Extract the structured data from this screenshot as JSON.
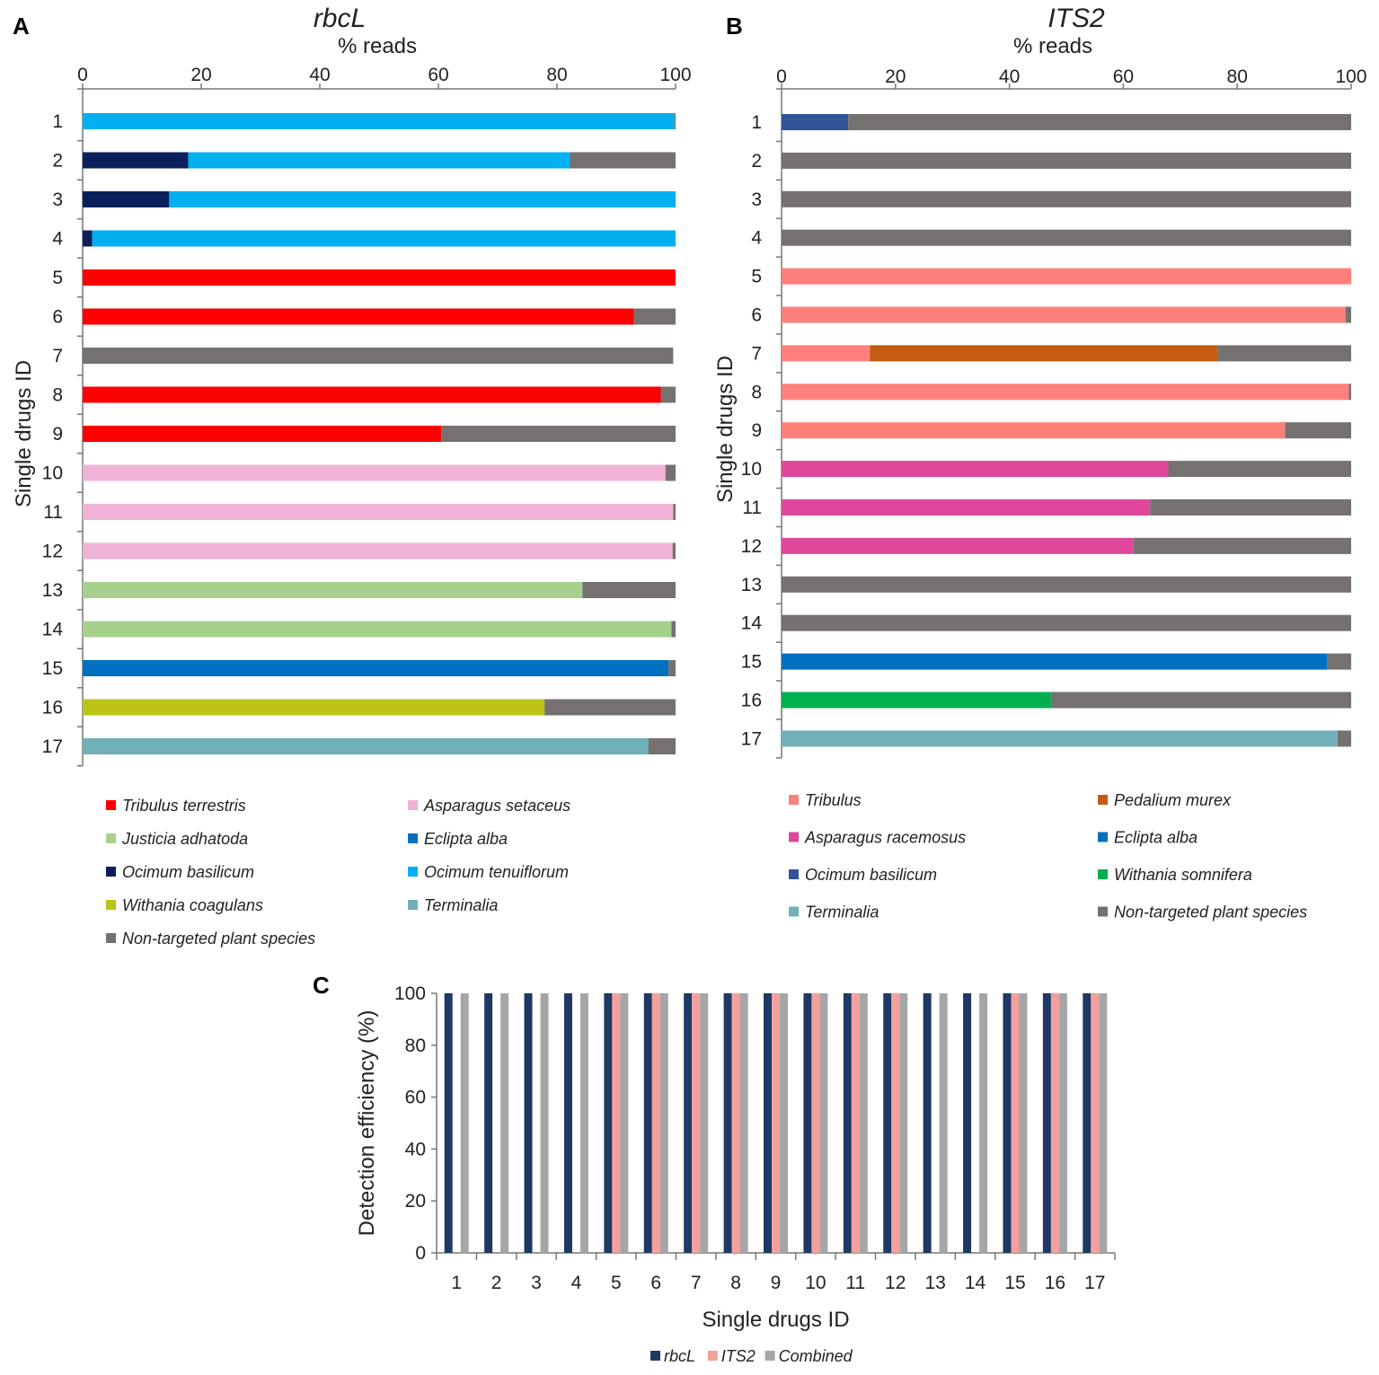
{
  "figure_labels": {
    "a": "A",
    "b": "B",
    "c": "C"
  },
  "chart_data": [
    {
      "panel": "A",
      "type": "bar",
      "orientation": "horizontal",
      "stacked": true,
      "title": "rbcL",
      "xlabel": "% reads",
      "ylabel": "Single drugs ID",
      "xlim": [
        0,
        100
      ],
      "xticks": [
        0,
        20,
        40,
        60,
        80,
        100
      ],
      "categories": [
        "1",
        "2",
        "3",
        "4",
        "5",
        "6",
        "7",
        "8",
        "9",
        "10",
        "11",
        "12",
        "13",
        "14",
        "15",
        "16",
        "17"
      ],
      "series": [
        {
          "name": "Tribulus terrestris",
          "color": "#ff0000",
          "values": [
            0,
            0,
            0,
            0,
            100,
            93,
            0,
            97.5,
            60.5,
            0,
            0,
            0,
            0,
            0,
            0,
            0,
            0
          ]
        },
        {
          "name": "Asparagus setaceus",
          "color": "#f0b2d6",
          "values": [
            0,
            0,
            0,
            0,
            0,
            0,
            0,
            0,
            0,
            98.3,
            99.6,
            99.5,
            0,
            0,
            0,
            0,
            0
          ]
        },
        {
          "name": "Justicia adhatoda",
          "color": "#a8d08d",
          "values": [
            0,
            0,
            0,
            0,
            0,
            0,
            0,
            0,
            0,
            0,
            0,
            0,
            84.3,
            99.3,
            0,
            0,
            0
          ]
        },
        {
          "name": "Eclipta alba",
          "color": "#0070c0",
          "values": [
            0,
            0,
            0,
            0,
            0,
            0,
            0,
            0,
            0,
            0,
            0,
            0,
            0,
            0,
            98.8,
            0,
            0
          ]
        },
        {
          "name": "Ocimum basilicum",
          "color": "#0b1f5c",
          "values": [
            0,
            17.8,
            14.6,
            1.6,
            0,
            0,
            0,
            0,
            0,
            0,
            0,
            0,
            0,
            0,
            0,
            0,
            0
          ]
        },
        {
          "name": "Ocimum tenuiflorum",
          "color": "#00b0f0",
          "values": [
            99.8,
            64.4,
            85.4,
            98.4,
            0,
            0,
            0,
            0,
            0,
            0,
            0,
            0,
            0,
            0,
            0,
            0,
            0
          ]
        },
        {
          "name": "Withania coagulans",
          "color": "#bcc515",
          "values": [
            0,
            0,
            0,
            0,
            0,
            0,
            0,
            0,
            0,
            0,
            0,
            0,
            0,
            0,
            0,
            77.9,
            0
          ]
        },
        {
          "name": "Terminalia",
          "color": "#70b1b9",
          "values": [
            0,
            0,
            0,
            0,
            0,
            0,
            0,
            0,
            0,
            0,
            0,
            0,
            0,
            0,
            0,
            0,
            95.4
          ]
        },
        {
          "name": "Non-targeted plant species",
          "color": "#767171",
          "values": [
            0.2,
            17.8,
            0,
            0,
            0,
            7,
            99.6,
            2.5,
            39.5,
            1.7,
            0.4,
            0.5,
            15.7,
            0.7,
            1.2,
            22.1,
            4.6
          ]
        }
      ],
      "legend": [
        "Tribulus terrestris",
        "Asparagus setaceus",
        "Justicia adhatoda",
        "Eclipta alba",
        "Ocimum basilicum",
        "Ocimum tenuiflorum",
        "Withania coagulans",
        "Terminalia",
        "Non-targeted plant species"
      ]
    },
    {
      "panel": "B",
      "type": "bar",
      "orientation": "horizontal",
      "stacked": true,
      "title": "ITS2",
      "xlabel": "% reads",
      "ylabel": "Single drugs ID",
      "xlim": [
        0,
        100
      ],
      "xticks": [
        0,
        20,
        40,
        60,
        80,
        100
      ],
      "categories": [
        "1",
        "2",
        "3",
        "4",
        "5",
        "6",
        "7",
        "8",
        "9",
        "10",
        "11",
        "12",
        "13",
        "14",
        "15",
        "16",
        "17"
      ],
      "series": [
        {
          "name": "Tribulus",
          "color": "#ff7f7b",
          "values": [
            0,
            0,
            0,
            0,
            100,
            99,
            15.5,
            99.6,
            88.4,
            0,
            0,
            0,
            0,
            0,
            0,
            0,
            0
          ]
        },
        {
          "name": "Pedalium murex",
          "color": "#c55a11",
          "values": [
            0,
            0,
            0,
            0,
            0,
            0,
            61.1,
            0,
            0,
            0,
            0,
            0,
            0,
            0,
            0,
            0,
            0
          ]
        },
        {
          "name": "Asparagus racemosus",
          "color": "#e0479a",
          "values": [
            0,
            0,
            0,
            0,
            0,
            0,
            0,
            0,
            0,
            67.9,
            64.7,
            61.8,
            0,
            0,
            0,
            0,
            0
          ]
        },
        {
          "name": "Eclipta alba",
          "color": "#0070c0",
          "values": [
            0,
            0,
            0,
            0,
            0,
            0,
            0,
            0,
            0,
            0,
            0,
            0,
            0,
            0,
            95.8,
            0,
            0
          ]
        },
        {
          "name": "Ocimum basilicum",
          "color": "#2f5597",
          "values": [
            11.7,
            0,
            0,
            0,
            0,
            0,
            0,
            0,
            0,
            0,
            0,
            0,
            0,
            0,
            0,
            0,
            0
          ]
        },
        {
          "name": "Withania somnifera",
          "color": "#00b050",
          "values": [
            0,
            0,
            0,
            0,
            0,
            0,
            0,
            0,
            0,
            0,
            0,
            0,
            0,
            0,
            0,
            47.3,
            0
          ]
        },
        {
          "name": "Terminalia",
          "color": "#70b1b9",
          "values": [
            0,
            0,
            0,
            0,
            0,
            0,
            0,
            0,
            0,
            0,
            0,
            0,
            0,
            0,
            0,
            0,
            97.6
          ]
        },
        {
          "name": "Non-targeted plant species",
          "color": "#767171",
          "values": [
            88.3,
            100,
            100,
            100,
            0,
            1,
            23.4,
            0.4,
            11.6,
            32.1,
            35.3,
            38.2,
            100,
            100,
            4.2,
            52.7,
            2.4
          ]
        }
      ],
      "legend": [
        "Tribulus",
        "Pedalium murex",
        "Asparagus racemosus",
        "Eclipta alba",
        "Ocimum basilicum",
        "Withania somnifera",
        "Terminalia",
        "Non-targeted plant species"
      ]
    },
    {
      "panel": "C",
      "type": "bar",
      "orientation": "vertical",
      "stacked": false,
      "title": "",
      "xlabel": "Single  drugs ID",
      "ylabel": "Detection efficiency (%)",
      "ylim": [
        0,
        100
      ],
      "yticks": [
        0,
        20,
        40,
        60,
        80,
        100
      ],
      "categories": [
        "1",
        "2",
        "3",
        "4",
        "5",
        "6",
        "7",
        "8",
        "9",
        "10",
        "11",
        "12",
        "13",
        "14",
        "15",
        "16",
        "17"
      ],
      "series": [
        {
          "name": "rbcL",
          "color": "#1f3864",
          "values": [
            100,
            100,
            100,
            100,
            100,
            100,
            100,
            100,
            100,
            100,
            100,
            100,
            100,
            100,
            100,
            100,
            100
          ]
        },
        {
          "name": "ITS2",
          "color": "#f4a09c",
          "values": [
            0,
            0,
            0,
            0,
            100,
            100,
            100,
            100,
            100,
            100,
            100,
            100,
            0,
            0,
            100,
            100,
            100
          ]
        },
        {
          "name": "Combined",
          "color": "#a6a6a6",
          "values": [
            100,
            100,
            100,
            100,
            100,
            100,
            100,
            100,
            100,
            100,
            100,
            100,
            100,
            100,
            100,
            100,
            100
          ]
        }
      ],
      "legend": [
        "rbcL",
        "ITS2",
        "Combined"
      ]
    }
  ]
}
